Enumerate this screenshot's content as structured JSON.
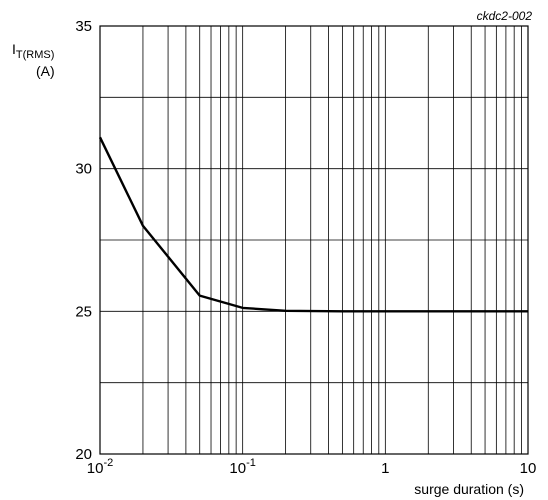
{
  "chart_data": {
    "type": "line",
    "figure_ref": "ckdc2-002",
    "ylabel_main": "I",
    "ylabel_sub": "T(RMS)",
    "ylabel_unit": "(A)",
    "xlabel": "surge duration (s)",
    "x_scale": "log",
    "xlim": [
      0.01,
      10
    ],
    "ylim": [
      20,
      35
    ],
    "grid": true,
    "x_ticks": [
      {
        "base": "10",
        "exp": "-2"
      },
      {
        "base": "10",
        "exp": "-1"
      },
      {
        "base": "1",
        "exp": ""
      },
      {
        "base": "10",
        "exp": ""
      }
    ],
    "y_ticks": [
      "20",
      "25",
      "30",
      "35"
    ],
    "series": [
      {
        "x": [
          0.01,
          0.02,
          0.05,
          0.1,
          0.2,
          0.5,
          1,
          2,
          5,
          10
        ],
        "y": [
          31.1,
          28.0,
          25.55,
          25.12,
          25.02,
          25.0,
          25.0,
          25.0,
          25.0,
          25.0
        ]
      }
    ]
  }
}
